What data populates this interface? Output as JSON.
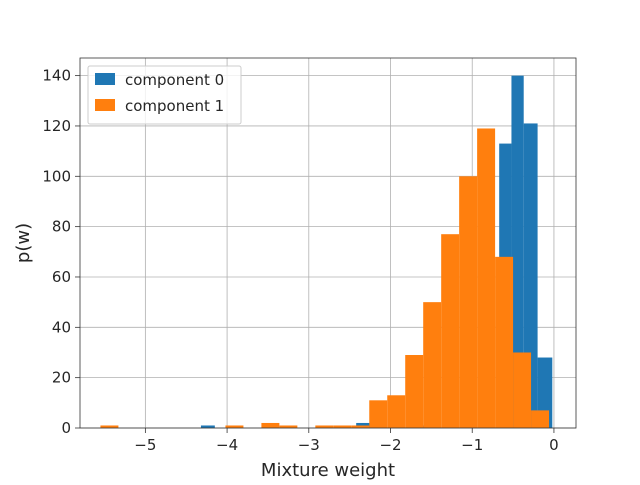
{
  "chart_data": {
    "type": "bar",
    "title": "",
    "xlabel": "Mixture weight",
    "ylabel": "p(w)",
    "xlim": [
      -5.8,
      0.27
    ],
    "ylim": [
      0,
      147
    ],
    "grid": true,
    "legend_position": "top-left",
    "x_ticks": [
      {
        "value": -5,
        "label": "−5"
      },
      {
        "value": -4,
        "label": "−4"
      },
      {
        "value": -3,
        "label": "−3"
      },
      {
        "value": -2,
        "label": "−2"
      },
      {
        "value": -1,
        "label": "−1"
      },
      {
        "value": 0,
        "label": "0"
      }
    ],
    "y_ticks": [
      {
        "value": 0,
        "label": "0"
      },
      {
        "value": 20,
        "label": "20"
      },
      {
        "value": 40,
        "label": "40"
      },
      {
        "value": 60,
        "label": "60"
      },
      {
        "value": 80,
        "label": "80"
      },
      {
        "value": 100,
        "label": "100"
      },
      {
        "value": 120,
        "label": "120"
      },
      {
        "value": 140,
        "label": "140"
      }
    ],
    "series": [
      {
        "name": "component 0",
        "color": "#1f77b4",
        "bins": [
          {
            "x0": -4.32,
            "x1": -4.15,
            "value": 1
          },
          {
            "x0": -2.42,
            "x1": -2.25,
            "value": 2
          },
          {
            "x0": -1.75,
            "x1": -1.55,
            "value": 1
          },
          {
            "x0": -0.67,
            "x1": -0.52,
            "value": 113
          },
          {
            "x0": -0.52,
            "x1": -0.37,
            "value": 140
          },
          {
            "x0": -0.37,
            "x1": -0.2,
            "value": 121
          },
          {
            "x0": -0.2,
            "x1": -0.02,
            "value": 28
          }
        ]
      },
      {
        "name": "component 1",
        "color": "#ff7f0e",
        "bins": [
          {
            "x0": -5.55,
            "x1": -5.33,
            "value": 1
          },
          {
            "x0": -4.02,
            "x1": -3.8,
            "value": 1
          },
          {
            "x0": -3.58,
            "x1": -3.36,
            "value": 2
          },
          {
            "x0": -3.36,
            "x1": -3.14,
            "value": 1
          },
          {
            "x0": -2.92,
            "x1": -2.7,
            "value": 1
          },
          {
            "x0": -2.7,
            "x1": -2.48,
            "value": 1
          },
          {
            "x0": -2.48,
            "x1": -2.26,
            "value": 1
          },
          {
            "x0": -2.26,
            "x1": -2.04,
            "value": 11
          },
          {
            "x0": -2.04,
            "x1": -1.82,
            "value": 13
          },
          {
            "x0": -1.82,
            "x1": -1.6,
            "value": 29
          },
          {
            "x0": -1.6,
            "x1": -1.38,
            "value": 50
          },
          {
            "x0": -1.38,
            "x1": -1.16,
            "value": 77
          },
          {
            "x0": -1.16,
            "x1": -0.94,
            "value": 100
          },
          {
            "x0": -0.94,
            "x1": -0.72,
            "value": 119
          },
          {
            "x0": -0.72,
            "x1": -0.5,
            "value": 68
          },
          {
            "x0": -0.5,
            "x1": -0.28,
            "value": 30
          },
          {
            "x0": -0.28,
            "x1": -0.06,
            "value": 7
          }
        ]
      }
    ]
  }
}
